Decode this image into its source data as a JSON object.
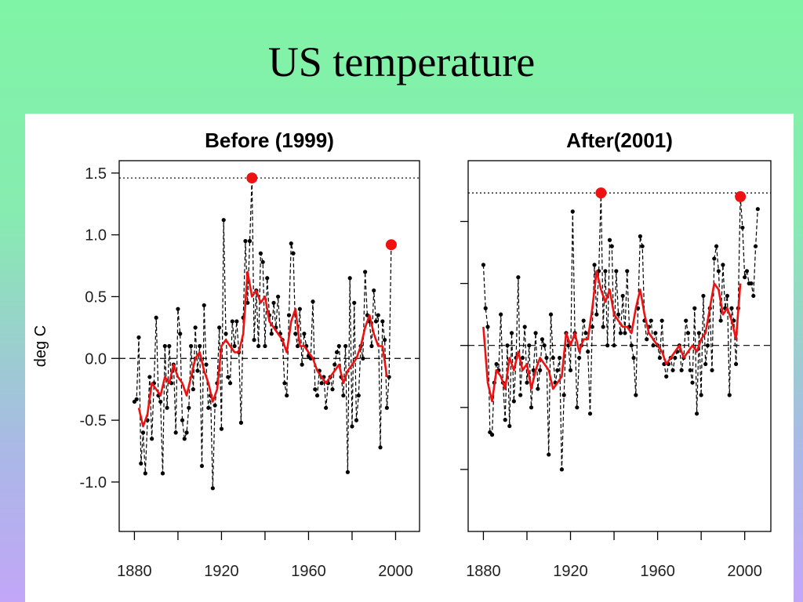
{
  "title": "US temperature",
  "chart_data": [
    {
      "type": "line",
      "title": "Before (1999)",
      "ylabel": "deg C",
      "xlim": [
        1873,
        2011
      ],
      "ylim": [
        -1.4,
        1.6
      ],
      "xticks": [
        1880,
        1920,
        1960,
        2000
      ],
      "xminor_ticks": [
        1900,
        1940,
        1980
      ],
      "yticks": [
        {
          "value": 1.5,
          "label": "1.5"
        },
        {
          "value": 1.0,
          "label": "1.0"
        },
        {
          "value": 0.5,
          "label": "0.5"
        },
        {
          "value": 0,
          "label": "0.0"
        },
        {
          "value": -0.5,
          "label": "-0.5"
        },
        {
          "value": -1.0,
          "label": "-1.0"
        }
      ],
      "zero_line": 0,
      "reference_line": 1.46,
      "annual": {
        "color": "#000000",
        "x": [
          1880,
          1881,
          1882,
          1883,
          1884,
          1885,
          1886,
          1887,
          1888,
          1889,
          1890,
          1891,
          1892,
          1893,
          1894,
          1895,
          1896,
          1897,
          1898,
          1899,
          1900,
          1901,
          1902,
          1903,
          1904,
          1905,
          1906,
          1907,
          1908,
          1909,
          1910,
          1911,
          1912,
          1913,
          1914,
          1915,
          1916,
          1917,
          1918,
          1919,
          1920,
          1921,
          1922,
          1923,
          1924,
          1925,
          1926,
          1927,
          1928,
          1929,
          1930,
          1931,
          1932,
          1933,
          1934,
          1935,
          1936,
          1937,
          1938,
          1939,
          1940,
          1941,
          1942,
          1943,
          1944,
          1945,
          1946,
          1947,
          1948,
          1949,
          1950,
          1951,
          1952,
          1953,
          1954,
          1955,
          1956,
          1957,
          1958,
          1959,
          1960,
          1961,
          1962,
          1963,
          1964,
          1965,
          1966,
          1967,
          1968,
          1969,
          1970,
          1971,
          1972,
          1973,
          1974,
          1975,
          1976,
          1977,
          1978,
          1979,
          1980,
          1981,
          1982,
          1983,
          1984,
          1985,
          1986,
          1987,
          1988,
          1989,
          1990,
          1991,
          1992,
          1993,
          1994,
          1995,
          1996,
          1997,
          1998
        ],
        "values": [
          -0.35,
          -0.33,
          0.17,
          -0.85,
          -0.6,
          -0.93,
          -0.5,
          -0.15,
          -0.65,
          -0.2,
          0.33,
          -0.3,
          -0.35,
          -0.93,
          0.1,
          -0.4,
          0.1,
          -0.2,
          -0.05,
          -0.6,
          0.4,
          0.2,
          -0.5,
          -0.65,
          -0.6,
          -0.4,
          0.1,
          -0.25,
          0.25,
          -0.1,
          0.1,
          -0.87,
          0.43,
          -0.05,
          -0.4,
          -0.3,
          -1.05,
          -0.38,
          -0.2,
          0.25,
          -0.57,
          1.12,
          0.2,
          -0.15,
          -0.2,
          0.3,
          0.1,
          0.3,
          0.05,
          -0.52,
          0.33,
          0.95,
          0.45,
          0.95,
          1.46,
          0.15,
          0.55,
          0.1,
          0.85,
          0.78,
          0.1,
          0.65,
          0.35,
          0.2,
          0.45,
          0.25,
          0.5,
          0.2,
          0.15,
          -0.2,
          -0.3,
          0.35,
          0.93,
          0.85,
          0.2,
          0.1,
          0.4,
          -0.05,
          0.2,
          0.1,
          0.02,
          0.0,
          0.46,
          -0.25,
          -0.3,
          -0.1,
          -0.2,
          -0.15,
          -0.4,
          -0.2,
          -0.15,
          -0.25,
          -0.05,
          0.05,
          0.1,
          -0.15,
          -0.3,
          0.1,
          -0.92,
          0.65,
          -0.55,
          0.45,
          -0.5,
          -0.3,
          0.1,
          0.0,
          0.7,
          0.35,
          0.3,
          0.1,
          0.55,
          0.3,
          0.35,
          -0.72,
          0.3,
          0.15,
          -0.4,
          -0.15,
          0.92
        ]
      },
      "smoothed": {
        "color": "#ee1111",
        "x": [
          1882,
          1884,
          1886,
          1888,
          1890,
          1892,
          1894,
          1896,
          1898,
          1900,
          1902,
          1904,
          1906,
          1908,
          1910,
          1912,
          1914,
          1916,
          1918,
          1920,
          1922,
          1924,
          1926,
          1928,
          1930,
          1932,
          1934,
          1936,
          1938,
          1940,
          1942,
          1944,
          1946,
          1948,
          1950,
          1952,
          1954,
          1956,
          1958,
          1960,
          1962,
          1964,
          1966,
          1968,
          1970,
          1972,
          1974,
          1976,
          1978,
          1980,
          1982,
          1984,
          1986,
          1988,
          1990,
          1992,
          1994,
          1996
        ],
        "values": [
          -0.4,
          -0.55,
          -0.45,
          -0.2,
          -0.25,
          -0.3,
          -0.15,
          -0.2,
          -0.05,
          -0.15,
          -0.2,
          -0.3,
          -0.15,
          0.0,
          0.05,
          -0.1,
          -0.2,
          -0.35,
          -0.25,
          0.1,
          0.15,
          0.1,
          0.05,
          0.05,
          0.2,
          0.7,
          0.5,
          0.55,
          0.45,
          0.5,
          0.3,
          0.25,
          0.2,
          0.15,
          0.05,
          0.3,
          0.4,
          0.1,
          0.1,
          0.05,
          0.0,
          -0.1,
          -0.15,
          -0.2,
          -0.15,
          -0.1,
          -0.05,
          -0.2,
          -0.1,
          -0.05,
          0.0,
          0.1,
          0.25,
          0.35,
          0.2,
          0.1,
          0.1,
          -0.15
        ]
      },
      "highlights": {
        "color": "#ee1111",
        "x": [
          1934,
          1998
        ],
        "values": [
          1.46,
          0.92
        ]
      }
    },
    {
      "type": "line",
      "title": "After(2001)",
      "xlim": [
        1873,
        2012
      ],
      "ylim": [
        -1.5,
        1.49
      ],
      "xticks": [
        1880,
        1920,
        1960,
        2000
      ],
      "xminor_ticks": [
        1900,
        1940,
        1980
      ],
      "yticks": [
        1.0,
        0.5,
        0,
        -0.5,
        -1.0
      ],
      "zero_line": 0,
      "reference_line": 1.23,
      "annual": {
        "color": "#000000",
        "x": [
          1880,
          1881,
          1882,
          1883,
          1884,
          1885,
          1886,
          1887,
          1888,
          1889,
          1890,
          1891,
          1892,
          1893,
          1894,
          1895,
          1896,
          1897,
          1898,
          1899,
          1900,
          1901,
          1902,
          1903,
          1904,
          1905,
          1906,
          1907,
          1908,
          1909,
          1910,
          1911,
          1912,
          1913,
          1914,
          1915,
          1916,
          1917,
          1918,
          1919,
          1920,
          1921,
          1922,
          1923,
          1924,
          1925,
          1926,
          1927,
          1928,
          1929,
          1930,
          1931,
          1932,
          1933,
          1934,
          1935,
          1936,
          1937,
          1938,
          1939,
          1940,
          1941,
          1942,
          1943,
          1944,
          1945,
          1946,
          1947,
          1948,
          1949,
          1950,
          1951,
          1952,
          1953,
          1954,
          1955,
          1956,
          1957,
          1958,
          1959,
          1960,
          1961,
          1962,
          1963,
          1964,
          1965,
          1966,
          1967,
          1968,
          1969,
          1970,
          1971,
          1972,
          1973,
          1974,
          1975,
          1976,
          1977,
          1978,
          1979,
          1980,
          1981,
          1982,
          1983,
          1984,
          1985,
          1986,
          1987,
          1988,
          1989,
          1990,
          1991,
          1992,
          1993,
          1994,
          1995,
          1996,
          1997,
          1998,
          1999,
          2000,
          2001,
          2002,
          2003,
          2004,
          2005,
          2006
        ],
        "values": [
          0.65,
          0.3,
          0.15,
          -0.7,
          -0.72,
          -0.3,
          -0.15,
          -0.2,
          0.25,
          -0.3,
          -0.6,
          0.0,
          -0.65,
          0.1,
          -0.45,
          -0.1,
          0.55,
          -0.4,
          -0.1,
          0.15,
          -0.3,
          0.0,
          -0.5,
          -0.2,
          0.1,
          -0.35,
          -0.2,
          0.05,
          0.0,
          -0.1,
          -0.88,
          0.25,
          -0.1,
          -0.3,
          -0.2,
          -0.1,
          -1.0,
          -0.4,
          0.1,
          0.0,
          -0.2,
          1.08,
          0.1,
          -0.5,
          -0.1,
          0.0,
          0.2,
          0.1,
          -0.05,
          -0.55,
          0.15,
          0.65,
          0.25,
          0.6,
          1.23,
          0.15,
          0.6,
          0.0,
          0.85,
          0.8,
          0.0,
          0.6,
          0.25,
          0.1,
          0.4,
          0.1,
          0.6,
          0.15,
          0.0,
          -0.1,
          -0.4,
          0.3,
          0.88,
          0.8,
          0.2,
          0.05,
          0.15,
          0.2,
          0.0,
          0.1,
          0.0,
          -0.1,
          0.2,
          -0.15,
          -0.25,
          -0.15,
          -0.1,
          -0.2,
          -0.1,
          -0.05,
          0.0,
          -0.2,
          -0.1,
          0.2,
          0.1,
          -0.2,
          -0.3,
          0.3,
          -0.55,
          0.1,
          -0.4,
          0.4,
          -0.15,
          0.0,
          0.3,
          -0.2,
          0.7,
          0.8,
          0.6,
          0.2,
          0.65,
          0.3,
          0.4,
          -0.4,
          0.3,
          0.2,
          -0.15,
          0.3,
          1.2,
          0.95,
          0.55,
          0.6,
          0.5,
          0.5,
          0.4,
          0.8,
          1.1
        ]
      },
      "smoothed": {
        "color": "#ee1111",
        "x": [
          1880,
          1882,
          1884,
          1886,
          1888,
          1890,
          1892,
          1894,
          1896,
          1898,
          1900,
          1902,
          1904,
          1906,
          1908,
          1910,
          1912,
          1914,
          1916,
          1918,
          1920,
          1922,
          1924,
          1926,
          1928,
          1930,
          1932,
          1934,
          1936,
          1938,
          1940,
          1942,
          1944,
          1946,
          1948,
          1950,
          1952,
          1954,
          1956,
          1958,
          1960,
          1962,
          1964,
          1966,
          1968,
          1970,
          1972,
          1974,
          1976,
          1978,
          1980,
          1982,
          1984,
          1986,
          1988,
          1990,
          1992,
          1994,
          1996,
          1998
        ],
        "values": [
          0.15,
          -0.3,
          -0.45,
          -0.2,
          -0.25,
          -0.35,
          -0.1,
          -0.2,
          -0.05,
          -0.2,
          -0.15,
          -0.35,
          -0.2,
          -0.1,
          -0.15,
          -0.2,
          -0.35,
          -0.3,
          -0.25,
          0.1,
          0.0,
          0.1,
          -0.05,
          0.05,
          0.05,
          0.3,
          0.6,
          0.45,
          0.35,
          0.45,
          0.25,
          0.2,
          0.15,
          0.15,
          0.1,
          0.3,
          0.45,
          0.25,
          0.1,
          0.05,
          0.0,
          -0.05,
          -0.15,
          -0.1,
          -0.05,
          0.0,
          -0.1,
          -0.05,
          0.0,
          -0.05,
          0.05,
          0.1,
          0.3,
          0.5,
          0.45,
          0.25,
          0.3,
          0.2,
          0.05,
          0.5
        ]
      },
      "highlights": {
        "color": "#ee1111",
        "x": [
          1934,
          1998
        ],
        "values": [
          1.23,
          1.2
        ]
      }
    }
  ]
}
